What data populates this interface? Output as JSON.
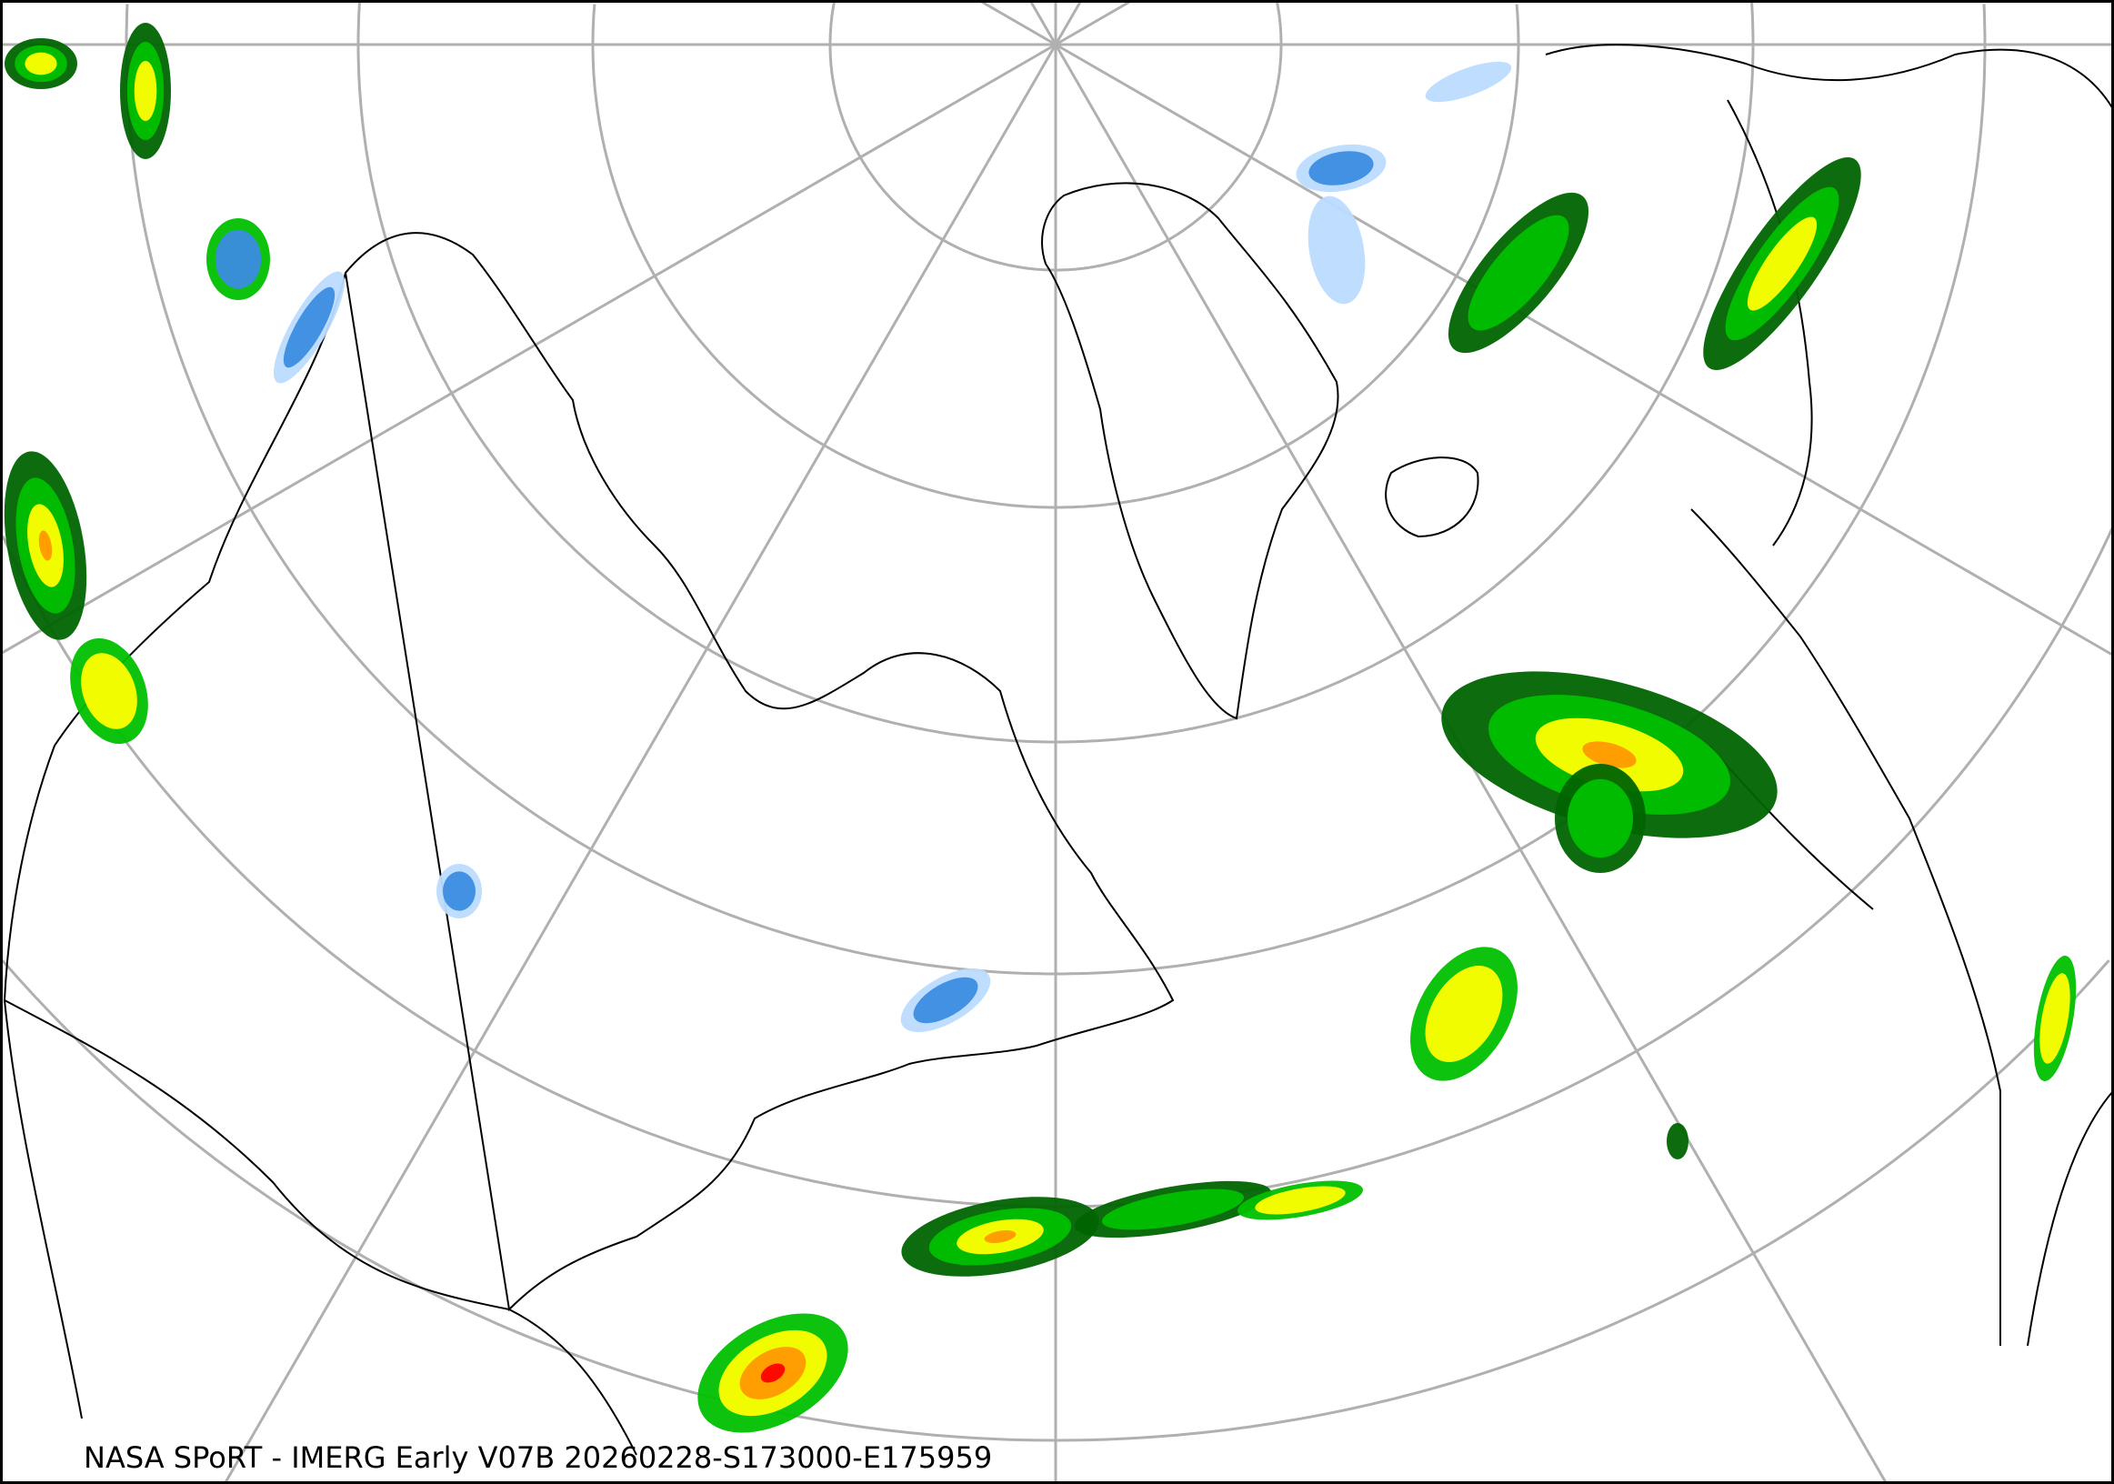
{
  "map": {
    "caption": "NASA SPoRT - IMERG Early V07B 20260228-S173000-E175959",
    "projection": "polar-stereographic",
    "colors": {
      "background": "#ffffff",
      "graticule": "#b0b0b0",
      "coastline": "#000000",
      "precip_light_blue": "#bcdcff",
      "precip_blue": "#3c8ce0",
      "precip_dark_green": "#006400",
      "precip_green": "#00c000",
      "precip_light_green": "#80ff00",
      "precip_yellow": "#ffff00",
      "precip_orange": "#ff9900",
      "precip_red": "#ff0000"
    }
  }
}
